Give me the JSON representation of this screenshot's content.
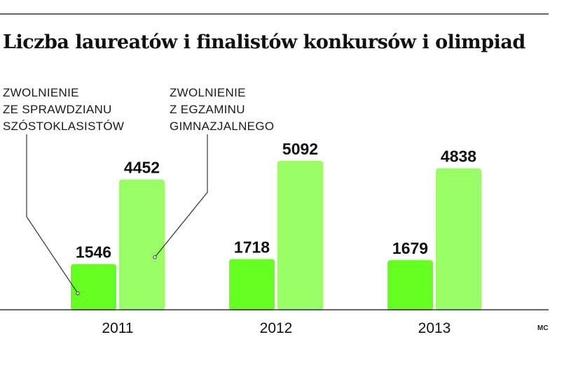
{
  "chart_data": {
    "type": "bar",
    "title": "Liczba laureatów i finalistów konkursów i olimpiad",
    "categories": [
      "2011",
      "2012",
      "2013"
    ],
    "series": [
      {
        "name": "ZWOLNIENIE ZE SPRAWDZIANU SZÓSTOKLASISTÓW",
        "name_lines": [
          "ZWOLNIENIE",
          "ZE SPRAWDZIANU",
          "SZÓSTOKLASISTÓW"
        ],
        "values": [
          1546,
          1718,
          1679
        ],
        "color": "#66ff22"
      },
      {
        "name": "ZWOLNIENIE Z EGZAMINU GIMNAZJALNEGO",
        "name_lines": [
          "ZWOLNIENIE",
          "Z EGZAMINU",
          "GIMNAZJALNEGO"
        ],
        "values": [
          4452,
          5092,
          4838
        ],
        "color": "#99ff66"
      }
    ],
    "xlabel": "",
    "ylabel": "",
    "ylim": [
      0,
      5092
    ],
    "grid": false,
    "legend": "callout-annotations",
    "credit": "MC"
  }
}
